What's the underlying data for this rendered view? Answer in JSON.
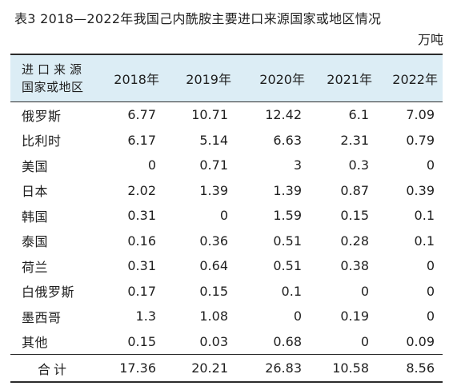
{
  "caption": "表3  2018—2022年我国己内酰胺主要进口来源国家或地区情况",
  "unit": "万吨",
  "columns": {
    "region_line1": "进口来源",
    "region_line2": "国家或地区",
    "years": [
      "2018年",
      "2019年",
      "2020年",
      "2021年",
      "2022年"
    ]
  },
  "rows": [
    {
      "region": "俄罗斯",
      "values": [
        "6.77",
        "10.71",
        "12.42",
        "6.1",
        "7.09"
      ]
    },
    {
      "region": "比利时",
      "values": [
        "6.17",
        "5.14",
        "6.63",
        "2.31",
        "0.79"
      ]
    },
    {
      "region": "美国",
      "values": [
        "0",
        "0.71",
        "3",
        "0.3",
        "0"
      ]
    },
    {
      "region": "日本",
      "values": [
        "2.02",
        "1.39",
        "1.39",
        "0.87",
        "0.39"
      ]
    },
    {
      "region": "韩国",
      "values": [
        "0.31",
        "0",
        "1.59",
        "0.15",
        "0.1"
      ]
    },
    {
      "region": "泰国",
      "values": [
        "0.16",
        "0.36",
        "0.51",
        "0.28",
        "0.1"
      ]
    },
    {
      "region": "荷兰",
      "values": [
        "0.31",
        "0.64",
        "0.51",
        "0.38",
        "0"
      ]
    },
    {
      "region": "白俄罗斯",
      "values": [
        "0.17",
        "0.15",
        "0.1",
        "0",
        "0"
      ]
    },
    {
      "region": "墨西哥",
      "values": [
        "1.3",
        "1.08",
        "0",
        "0.19",
        "0"
      ]
    },
    {
      "region": "其他",
      "values": [
        "0.15",
        "0.03",
        "0.68",
        "0",
        "0.09"
      ]
    }
  ],
  "total": {
    "label": "合计",
    "values": [
      "17.36",
      "20.21",
      "26.83",
      "10.58",
      "8.56"
    ]
  },
  "colors": {
    "header_bg": "#dcedf5",
    "rule": "#2b2b2b",
    "text": "#1f1f1f"
  }
}
